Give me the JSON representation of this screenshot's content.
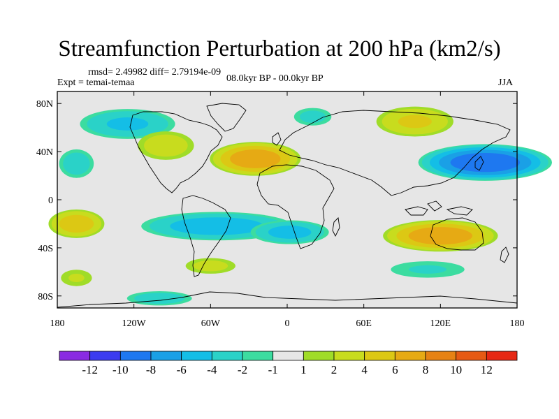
{
  "title": "Streamfunction Perturbation at 200 hPa (km2/s)",
  "stats": "rmsd= 2.49982 diff= 2.79194e-09",
  "experiment": "Expt = temai-temaa",
  "period": "08.0kyr BP - 00.0kyr BP",
  "season": "JJA",
  "map": {
    "lon_range": [
      -180,
      180
    ],
    "lat_range": [
      -90,
      90
    ],
    "y_ticks": [
      {
        "lat": 80,
        "label": "80N"
      },
      {
        "lat": 40,
        "label": "40N"
      },
      {
        "lat": 0,
        "label": "0"
      },
      {
        "lat": -40,
        "label": "40S"
      },
      {
        "lat": -80,
        "label": "80S"
      }
    ],
    "x_ticks": [
      {
        "lon": -180,
        "label": "180"
      },
      {
        "lon": -120,
        "label": "120W"
      },
      {
        "lon": -60,
        "label": "60W"
      },
      {
        "lon": 0,
        "label": "0"
      },
      {
        "lon": 60,
        "label": "60E"
      },
      {
        "lon": 120,
        "label": "120E"
      },
      {
        "lon": 180,
        "label": "180"
      }
    ],
    "anomalies": [
      {
        "lon": 155,
        "lat": 31,
        "rlon": 55,
        "rlat": 16,
        "peak": -9
      },
      {
        "lon": -125,
        "lat": 63,
        "rlon": 42,
        "rlat": 14,
        "peak": -4
      },
      {
        "lon": -55,
        "lat": -22,
        "rlon": 65,
        "rlat": 13,
        "peak": -5
      },
      {
        "lon": 2,
        "lat": -27,
        "rlon": 34,
        "rlat": 11,
        "peak": -4.5
      },
      {
        "lon": -165,
        "lat": 30,
        "rlon": 16,
        "rlat": 14,
        "peak": -3
      },
      {
        "lon": -100,
        "lat": -82,
        "rlon": 30,
        "rlat": 7,
        "peak": -3
      },
      {
        "lon": 110,
        "lat": -58,
        "rlon": 38,
        "rlat": 9,
        "peak": -2
      },
      {
        "lon": 20,
        "lat": 69,
        "rlon": 18,
        "rlat": 9,
        "peak": -2.5
      },
      {
        "lon": -25,
        "lat": 34,
        "rlon": 38,
        "rlat": 15,
        "peak": 7
      },
      {
        "lon": 120,
        "lat": -30,
        "rlon": 48,
        "rlat": 14,
        "peak": 7
      },
      {
        "lon": -165,
        "lat": -20,
        "rlon": 24,
        "rlat": 13,
        "peak": 5
      },
      {
        "lon": 100,
        "lat": 65,
        "rlon": 34,
        "rlat": 14,
        "peak": 4
      },
      {
        "lon": -95,
        "lat": 45,
        "rlon": 26,
        "rlat": 14,
        "peak": 3
      },
      {
        "lon": -60,
        "lat": -55,
        "rlon": 24,
        "rlat": 8,
        "peak": 2.5
      },
      {
        "lon": -165,
        "lat": -65,
        "rlon": 16,
        "rlat": 9,
        "peak": 2
      }
    ]
  },
  "colorbar": {
    "colors": [
      "#8a2be2",
      "#3c3cf0",
      "#1e78f0",
      "#1aa0e6",
      "#14bee6",
      "#2ad2c8",
      "#3cdca0",
      "#e6e6e6",
      "#a0dc28",
      "#c8dc1e",
      "#dcc814",
      "#e6aa14",
      "#e68214",
      "#e65a14",
      "#e62814"
    ],
    "labels": [
      "-12",
      "-10",
      "-8",
      "-6",
      "-4",
      "-2",
      "-1",
      "1",
      "2",
      "4",
      "6",
      "8",
      "10",
      "12"
    ]
  }
}
